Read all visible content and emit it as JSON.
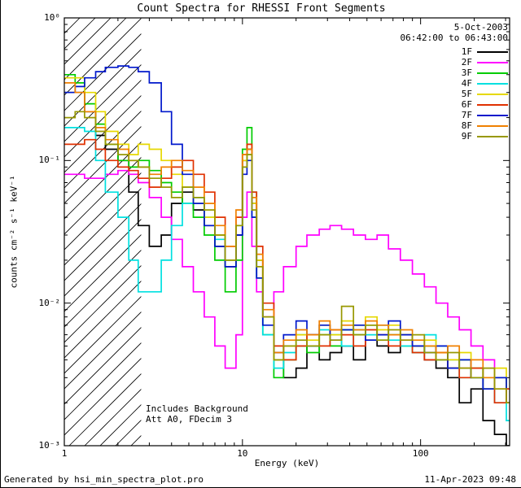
{
  "header": {
    "date": "5-Oct-2003",
    "time_range": "06:42:00 to 06:43:00"
  },
  "annotations": {
    "line1": "Includes Background",
    "line2": "Att A0, FDecim 3"
  },
  "footer": {
    "left": "Generated by hsi_min_spectra_plot.pro",
    "right": "11-Apr-2023 09:48"
  },
  "chart_data": {
    "type": "line",
    "line_style": "step-histogram",
    "title": "Count Spectra for RHESSI Front Segments",
    "xlabel": "Energy (keV)",
    "ylabel": "counts cm⁻² s⁻¹ keV⁻¹",
    "x_scale": "log",
    "y_scale": "log",
    "xlim": [
      1,
      316
    ],
    "ylim": [
      0.001,
      1
    ],
    "grid": false,
    "legend_position": "top-right",
    "x_ticks": [
      {
        "value": 1,
        "label": "1"
      },
      {
        "value": 10,
        "label": "10"
      },
      {
        "value": 100,
        "label": "100"
      }
    ],
    "y_ticks": [
      {
        "value": 1,
        "label": "10⁰"
      },
      {
        "value": 0.1,
        "label": "10⁻¹"
      },
      {
        "value": 0.01,
        "label": "10⁻²"
      },
      {
        "value": 0.001,
        "label": "10⁻³"
      }
    ],
    "hatched_region": {
      "x_start": 1,
      "x_end": 2.7
    },
    "energies": [
      1.0,
      1.15,
      1.3,
      1.5,
      1.7,
      2.0,
      2.3,
      2.6,
      3.0,
      3.5,
      4.0,
      4.6,
      5.3,
      6.1,
      7.0,
      8.0,
      9.2,
      10.0,
      10.6,
      11.3,
      12.0,
      13.0,
      15.0,
      17.0,
      20.0,
      23.0,
      27.0,
      31.0,
      36.0,
      42.0,
      49.0,
      57.0,
      66.0,
      77.0,
      90.0,
      105.0,
      122.0,
      142.0,
      165.0,
      192.0,
      224.0,
      260.0,
      303.0,
      353.0,
      400.0
    ],
    "series": [
      {
        "name": "1F",
        "color": "#000000",
        "values": [
          0.3,
          0.3,
          0.22,
          0.15,
          0.12,
          0.1,
          0.06,
          0.035,
          0.025,
          0.03,
          0.05,
          0.06,
          0.045,
          0.035,
          0.025,
          0.018,
          0.03,
          0.1,
          0.12,
          0.05,
          0.02,
          0.008,
          0.004,
          0.003,
          0.0035,
          0.005,
          0.004,
          0.0045,
          0.005,
          0.004,
          0.0055,
          0.005,
          0.0045,
          0.006,
          0.005,
          0.004,
          0.0035,
          0.003,
          0.002,
          0.0025,
          0.0015,
          0.0012,
          0.001,
          0.0015,
          0.001
        ]
      },
      {
        "name": "2F",
        "color": "#ff00ff",
        "values": [
          0.08,
          0.08,
          0.075,
          0.075,
          0.08,
          0.085,
          0.08,
          0.07,
          0.055,
          0.04,
          0.028,
          0.018,
          0.012,
          0.008,
          0.005,
          0.0035,
          0.006,
          0.04,
          0.06,
          0.025,
          0.012,
          0.008,
          0.012,
          0.018,
          0.025,
          0.03,
          0.033,
          0.035,
          0.033,
          0.03,
          0.028,
          0.03,
          0.024,
          0.02,
          0.016,
          0.013,
          0.01,
          0.008,
          0.0065,
          0.005,
          0.004,
          0.003,
          0.0025,
          0.002,
          0.0018
        ]
      },
      {
        "name": "3F",
        "color": "#00cc00",
        "values": [
          0.4,
          0.35,
          0.25,
          0.18,
          0.13,
          0.1,
          0.09,
          0.1,
          0.085,
          0.07,
          0.06,
          0.05,
          0.04,
          0.03,
          0.02,
          0.012,
          0.02,
          0.12,
          0.17,
          0.06,
          0.015,
          0.006,
          0.003,
          0.004,
          0.005,
          0.0045,
          0.006,
          0.005,
          0.0065,
          0.006,
          0.007,
          0.0055,
          0.006,
          0.005,
          0.0045,
          0.005,
          0.004,
          0.0035,
          0.004,
          0.003,
          0.0025,
          0.003,
          0.002,
          0.0025,
          0.002
        ]
      },
      {
        "name": "4F",
        "color": "#00e0e0",
        "values": [
          0.17,
          0.17,
          0.16,
          0.1,
          0.06,
          0.04,
          0.02,
          0.012,
          0.012,
          0.02,
          0.035,
          0.05,
          0.055,
          0.04,
          0.028,
          0.02,
          0.035,
          0.09,
          0.11,
          0.04,
          0.015,
          0.006,
          0.0035,
          0.0045,
          0.006,
          0.005,
          0.0065,
          0.006,
          0.005,
          0.0065,
          0.006,
          0.007,
          0.0055,
          0.005,
          0.0045,
          0.006,
          0.005,
          0.004,
          0.003,
          0.0035,
          0.0025,
          0.002,
          0.0015,
          0.002,
          0.0015
        ]
      },
      {
        "name": "5F",
        "color": "#e6d800",
        "values": [
          0.38,
          0.38,
          0.3,
          0.22,
          0.16,
          0.13,
          0.11,
          0.13,
          0.12,
          0.1,
          0.08,
          0.065,
          0.05,
          0.04,
          0.03,
          0.02,
          0.035,
          0.1,
          0.13,
          0.05,
          0.02,
          0.008,
          0.004,
          0.005,
          0.006,
          0.0055,
          0.007,
          0.006,
          0.0075,
          0.007,
          0.008,
          0.0065,
          0.007,
          0.006,
          0.005,
          0.0055,
          0.0045,
          0.004,
          0.0045,
          0.0035,
          0.003,
          0.0035,
          0.0025,
          0.003,
          0.0025
        ]
      },
      {
        "name": "6F",
        "color": "#e03000",
        "values": [
          0.13,
          0.13,
          0.14,
          0.12,
          0.1,
          0.09,
          0.085,
          0.075,
          0.065,
          0.075,
          0.09,
          0.1,
          0.08,
          0.06,
          0.04,
          0.025,
          0.04,
          0.11,
          0.13,
          0.06,
          0.025,
          0.01,
          0.005,
          0.004,
          0.005,
          0.006,
          0.005,
          0.0065,
          0.006,
          0.005,
          0.0065,
          0.006,
          0.005,
          0.0055,
          0.0045,
          0.004,
          0.0045,
          0.0035,
          0.003,
          0.0035,
          0.0025,
          0.002,
          0.0025,
          0.0015,
          0.002
        ]
      },
      {
        "name": "7F",
        "color": "#0018cc",
        "values": [
          0.3,
          0.33,
          0.38,
          0.42,
          0.45,
          0.46,
          0.45,
          0.42,
          0.35,
          0.22,
          0.13,
          0.08,
          0.05,
          0.035,
          0.025,
          0.018,
          0.03,
          0.08,
          0.1,
          0.04,
          0.015,
          0.007,
          0.0045,
          0.006,
          0.0075,
          0.006,
          0.007,
          0.0055,
          0.0065,
          0.007,
          0.0055,
          0.006,
          0.0075,
          0.006,
          0.005,
          0.0045,
          0.005,
          0.0035,
          0.004,
          0.003,
          0.0025,
          0.003,
          0.002,
          0.0015,
          0.0018
        ]
      },
      {
        "name": "8F",
        "color": "#f08000",
        "values": [
          0.35,
          0.3,
          0.22,
          0.17,
          0.14,
          0.12,
          0.1,
          0.09,
          0.08,
          0.09,
          0.1,
          0.085,
          0.065,
          0.05,
          0.035,
          0.025,
          0.045,
          0.11,
          0.12,
          0.055,
          0.022,
          0.009,
          0.0045,
          0.0055,
          0.0065,
          0.006,
          0.0075,
          0.0065,
          0.007,
          0.0065,
          0.0075,
          0.007,
          0.006,
          0.0065,
          0.0055,
          0.005,
          0.0045,
          0.005,
          0.0035,
          0.004,
          0.003,
          0.0025,
          0.002,
          0.0025,
          0.002
        ]
      },
      {
        "name": "9F",
        "color": "#989800",
        "values": [
          0.2,
          0.22,
          0.2,
          0.16,
          0.13,
          0.11,
          0.1,
          0.09,
          0.075,
          0.065,
          0.055,
          0.065,
          0.055,
          0.045,
          0.03,
          0.02,
          0.035,
          0.09,
          0.11,
          0.045,
          0.018,
          0.008,
          0.004,
          0.005,
          0.0055,
          0.005,
          0.006,
          0.0055,
          0.0095,
          0.006,
          0.007,
          0.0055,
          0.0065,
          0.0055,
          0.006,
          0.0045,
          0.004,
          0.0045,
          0.0035,
          0.003,
          0.0035,
          0.0025,
          0.002,
          0.0025,
          0.002
        ]
      }
    ]
  }
}
